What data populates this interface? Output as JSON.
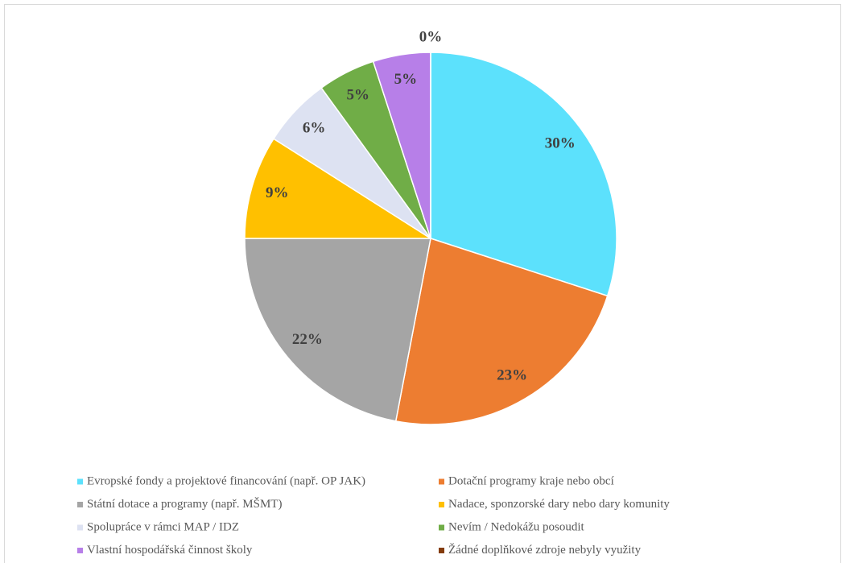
{
  "chart_data": {
    "type": "pie",
    "categories": [
      "Evropské fondy a projektové financování (např. OP JAK)",
      "Dotační programy kraje nebo obcí",
      "Státní dotace a programy (např. MŠMT)",
      "Nadace, sponzorské dary nebo dary komunity",
      "Spolupráce v rámci MAP / IDZ",
      "Nevím / Nedokážu posoudit",
      "Vlastní hospodářská činnost školy",
      "Žádné doplňkové zdroje nebyly využity"
    ],
    "values": [
      30,
      23,
      22,
      9,
      6,
      5,
      5,
      0
    ],
    "value_labels": [
      "30%",
      "23%",
      "22%",
      "9%",
      "6%",
      "5%",
      "5%",
      "0%"
    ],
    "colors": [
      "#5ce1fc",
      "#ed7d31",
      "#a5a5a5",
      "#ffc000",
      "#dde2f2",
      "#70ad47",
      "#b77fe8",
      "#843c0c"
    ],
    "legend": "bottom"
  }
}
